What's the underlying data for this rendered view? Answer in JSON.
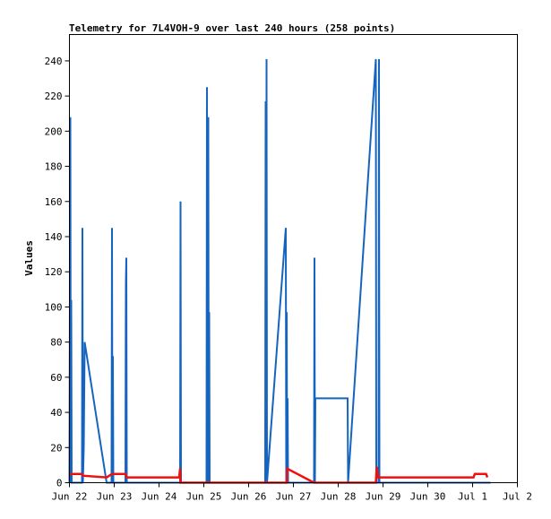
{
  "chart_data": {
    "type": "line",
    "title": "Telemetry for 7L4VOH-9 over last 240 hours (258 points)",
    "xlabel": "",
    "ylabel": "Values",
    "x_ticks": [
      "Jun 22",
      "Jun 23",
      "Jun 24",
      "Jun 25",
      "Jun 26",
      "Jun 27",
      "Jun 28",
      "Jun 29",
      "Jun 30",
      "Jul 1",
      "Jul 2"
    ],
    "x_unit": "days since Jun 22 00:00",
    "xlim": [
      0,
      10
    ],
    "ylim": [
      0,
      255
    ],
    "y_ticks": [
      0,
      20,
      40,
      60,
      80,
      100,
      120,
      140,
      160,
      180,
      200,
      220,
      240
    ],
    "grid": false,
    "legend": "none",
    "series": [
      {
        "color": "#1565c0",
        "points": [
          [
            0.0,
            0
          ],
          [
            0.02,
            208
          ],
          [
            0.03,
            0
          ],
          [
            0.04,
            104
          ],
          [
            0.05,
            0
          ],
          [
            0.28,
            0
          ],
          [
            0.29,
            145
          ],
          [
            0.3,
            0
          ],
          [
            0.32,
            20
          ],
          [
            0.34,
            80
          ],
          [
            0.83,
            0
          ],
          [
            0.94,
            0
          ],
          [
            0.95,
            145
          ],
          [
            0.96,
            0
          ],
          [
            0.97,
            72
          ],
          [
            0.98,
            0
          ],
          [
            1.25,
            0
          ],
          [
            1.26,
            113
          ],
          [
            1.27,
            128
          ],
          [
            1.28,
            0
          ],
          [
            2.47,
            0
          ],
          [
            2.48,
            160
          ],
          [
            2.49,
            0
          ],
          [
            3.06,
            0
          ],
          [
            3.07,
            225
          ],
          [
            3.08,
            0
          ],
          [
            3.09,
            97
          ],
          [
            3.1,
            208
          ],
          [
            3.11,
            0
          ],
          [
            3.12,
            97
          ],
          [
            3.13,
            0
          ],
          [
            4.37,
            0
          ],
          [
            4.38,
            217
          ],
          [
            4.39,
            0
          ],
          [
            4.4,
            241
          ],
          [
            4.41,
            0
          ],
          [
            4.83,
            145
          ],
          [
            4.84,
            0
          ],
          [
            4.85,
            97
          ],
          [
            4.86,
            0
          ],
          [
            4.87,
            48
          ],
          [
            4.88,
            0
          ],
          [
            5.46,
            0
          ],
          [
            5.47,
            128
          ],
          [
            5.48,
            0
          ],
          [
            5.49,
            48
          ],
          [
            6.21,
            48
          ],
          [
            6.22,
            0
          ],
          [
            6.84,
            241
          ],
          [
            6.85,
            0
          ],
          [
            6.9,
            0
          ],
          [
            6.91,
            241
          ],
          [
            6.92,
            0
          ],
          [
            9.4,
            0
          ]
        ]
      },
      {
        "color": "#ee1111",
        "points": [
          [
            0.0,
            5
          ],
          [
            0.28,
            5
          ],
          [
            0.3,
            4
          ],
          [
            0.83,
            3
          ],
          [
            0.95,
            5
          ],
          [
            1.25,
            5
          ],
          [
            1.28,
            3
          ],
          [
            2.45,
            3
          ],
          [
            2.47,
            8
          ],
          [
            2.48,
            0
          ],
          [
            4.85,
            0
          ],
          [
            4.86,
            8
          ],
          [
            5.46,
            0
          ],
          [
            6.84,
            0
          ],
          [
            6.86,
            9
          ],
          [
            6.89,
            3
          ],
          [
            9.02,
            3
          ],
          [
            9.05,
            5
          ],
          [
            9.3,
            5
          ],
          [
            9.33,
            3
          ]
        ]
      }
    ]
  }
}
